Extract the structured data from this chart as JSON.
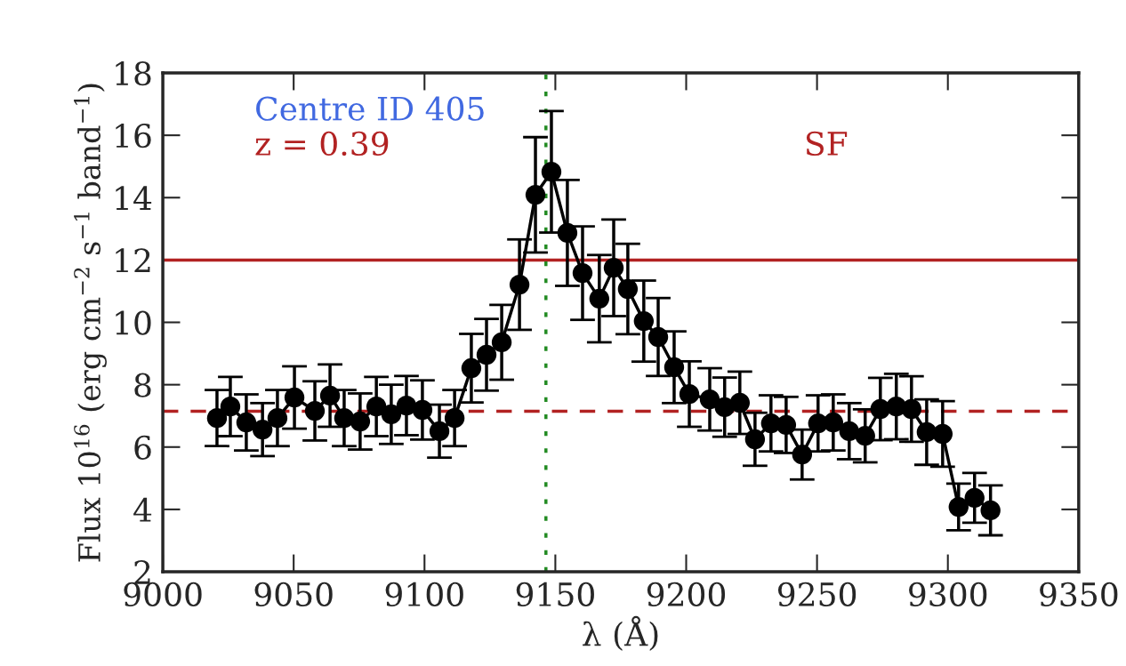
{
  "chart_data": {
    "type": "line",
    "xlabel": "λ (Å)",
    "ylabel": "Flux 10$^{16}$ (erg cm$^{−2}$ s$^{−1}$ band$^{−1}$)",
    "x": [
      9020.7,
      9025.8,
      9031.9,
      9038.1,
      9043.8,
      9050.3,
      9058.1,
      9063.9,
      9069.3,
      9075.4,
      9081.6,
      9087.3,
      9093.1,
      9099.2,
      9105.7,
      9111.5,
      9117.9,
      9123.7,
      9129.5,
      9136.3,
      9142.4,
      9148.5,
      9154.6,
      9160.4,
      9166.8,
      9172.3,
      9177.7,
      9183.8,
      9189.3,
      9195.4,
      9201.2,
      9209.0,
      9214.7,
      9220.5,
      9226.3,
      9232.4,
      9238.2,
      9244.3,
      9250.4,
      9256.2,
      9262.3,
      9268.4,
      9274.2,
      9280.3,
      9286.1,
      9291.9,
      9298.0,
      9304.1,
      9310.2,
      9316.3
    ],
    "series": [
      {
        "color": "#000000",
        "values": [
          6.93,
          7.3,
          6.79,
          6.56,
          6.93,
          7.59,
          7.16,
          7.65,
          6.93,
          6.82,
          7.3,
          7.05,
          7.33,
          7.19,
          6.51,
          6.93,
          8.53,
          8.96,
          9.36,
          11.21,
          14.09,
          14.83,
          12.87,
          11.58,
          10.76,
          11.75,
          11.07,
          10.04,
          9.53,
          8.56,
          7.7,
          7.53,
          7.28,
          7.42,
          6.25,
          6.76,
          6.71,
          5.76,
          6.76,
          6.79,
          6.51,
          6.36,
          7.22,
          7.3,
          7.22,
          6.48,
          6.42,
          4.08,
          4.37,
          3.97
        ],
        "errors": [
          0.9,
          0.95,
          0.9,
          0.85,
          0.9,
          1.0,
          0.95,
          1.0,
          0.9,
          0.9,
          0.95,
          0.95,
          0.95,
          0.95,
          0.85,
          0.9,
          1.1,
          1.15,
          1.2,
          1.45,
          1.85,
          1.95,
          1.7,
          1.5,
          1.4,
          1.55,
          1.45,
          1.3,
          1.25,
          1.15,
          1.05,
          1.0,
          0.95,
          1.0,
          0.85,
          0.9,
          0.9,
          0.8,
          0.9,
          0.9,
          0.9,
          0.85,
          1.0,
          1.05,
          1.05,
          1.05,
          1.05,
          0.75,
          0.8,
          0.8
        ]
      }
    ],
    "marker": "circle",
    "line_style": "solid",
    "xlim": [
      9000,
      9350
    ],
    "xticks": [
      9000,
      9050,
      9100,
      9150,
      9200,
      9250,
      9300,
      9350
    ],
    "ylim": [
      2,
      18
    ],
    "yticks": [
      2,
      4,
      6,
      8,
      10,
      12,
      14,
      16,
      18
    ],
    "ref_lines": [
      {
        "axis": "y",
        "value": 12,
        "color": "#b22222",
        "line_style": "solid"
      },
      {
        "axis": "y",
        "value": 7.15,
        "color": "#b22222",
        "line_style": "dashed"
      },
      {
        "axis": "x",
        "value": 9146.4,
        "color": "#228b22",
        "line_style": "dashdot"
      }
    ],
    "annotations": [
      "Centre ID 405",
      "z = 0.39",
      "SF"
    ],
    "grid": false,
    "legend": false
  }
}
